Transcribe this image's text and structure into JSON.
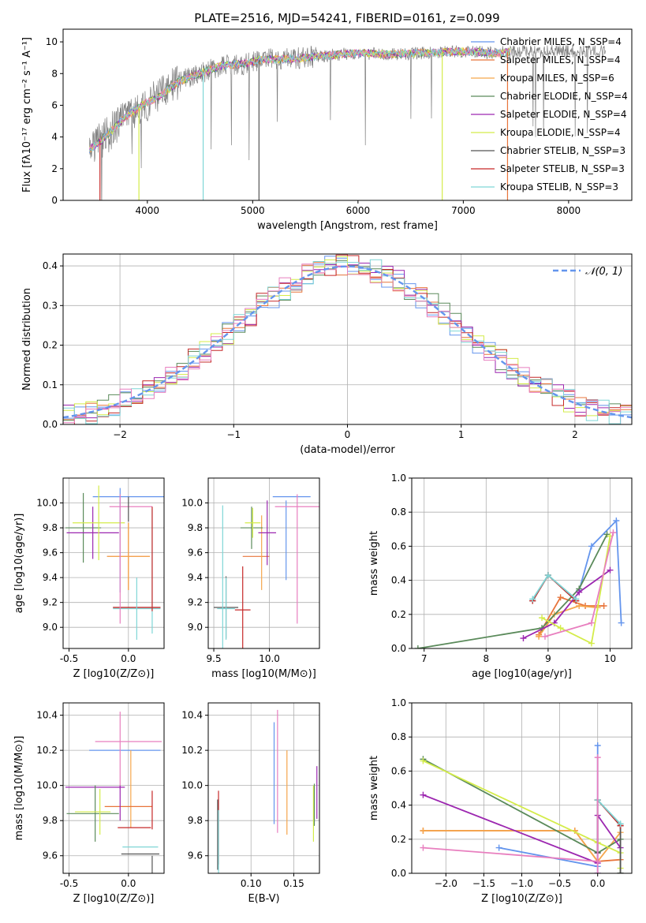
{
  "figure_title": "PLATE=2516, MJD=54241, FIBERID=0161, z=0.099",
  "colors": {
    "Chabrier MILES": "#6495ed",
    "Salpeter MILES": "#e8743b",
    "Kroupa MILES": "#f5a64c",
    "Chabrier ELODIE": "#5a8a5a",
    "Salpeter ELODIE": "#9c27b0",
    "Kroupa ELODIE": "#d4ec4a",
    "Chabrier STELIB": "#555555",
    "Salpeter STELIB": "#c62828",
    "Kroupa STELIB": "#7fd6d6",
    "pink": "#e87fbf",
    "data": "#808080",
    "gaussian": "#6495ed",
    "grid": "#b0b0b0"
  },
  "chart_data": [
    {
      "id": "spectrum",
      "type": "line",
      "title": "PLATE=2516, MJD=54241, FIBERID=0161, z=0.099",
      "xlabel": "wavelength [Angstrom, rest frame]",
      "ylabel": "Flux [fλ10⁻¹⁷ erg cm⁻² s⁻¹ A⁻¹]",
      "xlim": [
        3200,
        8600
      ],
      "ylim": [
        0,
        10.8
      ],
      "xticks": [
        4000,
        5000,
        6000,
        7000,
        8000
      ],
      "yticks": [
        0,
        2,
        4,
        6,
        8,
        10
      ],
      "grid": false,
      "legend_position": "right",
      "legend": [
        "Chabrier MILES, N_SSP=4",
        "Salpeter MILES, N_SSP=4",
        "Kroupa MILES, N_SSP=6",
        "Chabrier ELODIE, N_SSP=4",
        "Salpeter ELODIE, N_SSP=4",
        "Kroupa ELODIE, N_SSP=4",
        "Chabrier STELIB, N_SSP=3",
        "Salpeter STELIB, N_SSP=3",
        "Kroupa STELIB, N_SSP=3"
      ],
      "continuum": {
        "x": [
          3450,
          3600,
          3800,
          3950,
          4100,
          4300,
          4500,
          4700,
          4900,
          5100,
          5300,
          5500,
          5800,
          6000,
          6300,
          6600,
          7000,
          7300,
          7500
        ],
        "y": [
          3.2,
          4.0,
          5.3,
          6.0,
          6.5,
          7.5,
          8.0,
          8.5,
          8.6,
          8.9,
          8.9,
          9.0,
          9.2,
          9.3,
          9.2,
          9.3,
          9.4,
          9.3,
          9.4
        ]
      },
      "data_x_range": [
        3450,
        8350
      ],
      "model_x_range": [
        3450,
        7450
      ]
    },
    {
      "id": "residual-hist",
      "type": "bar",
      "xlabel": "(data-model)/error",
      "ylabel": "Normed distribution",
      "xlim": [
        -2.5,
        2.5
      ],
      "ylim": [
        0,
        0.43
      ],
      "xticks": [
        -2,
        -1,
        0,
        1,
        2
      ],
      "yticks": [
        0.0,
        0.1,
        0.2,
        0.3,
        0.4
      ],
      "grid": true,
      "legend": [
        "𝒩(0, 1)"
      ],
      "legend_position": "top-right",
      "bin_width": 0.1
    },
    {
      "id": "age-vs-Z",
      "type": "scatter",
      "xlabel": "Z [log10(Z/Z⊙)]",
      "ylabel": "age  [log10(age/yr)]",
      "xlim": [
        -0.55,
        0.3
      ],
      "ylim": [
        8.83,
        10.2
      ],
      "xticks": [
        -0.5,
        0.0
      ],
      "yticks": [
        9.0,
        9.2,
        9.4,
        9.6,
        9.8,
        10.0
      ],
      "grid": true,
      "points": [
        {
          "c": "Chabrier MILES",
          "x": 0.0,
          "xerr": 0.3,
          "y": 10.05,
          "yerr": 0.0
        },
        {
          "c": "Salpeter MILES",
          "x": 0.0,
          "xerr": 0.18,
          "y": 9.57,
          "yerr": 0.27
        },
        {
          "c": "Kroupa MILES",
          "x": 0.0,
          "xerr": 0.18,
          "y": 9.57,
          "yerr": 0.27
        },
        {
          "c": "Chabrier ELODIE",
          "x": -0.38,
          "xerr": 0.15,
          "y": 9.8,
          "yerr": 0.28
        },
        {
          "c": "Salpeter ELODIE",
          "x": -0.3,
          "xerr": 0.22,
          "y": 9.76,
          "yerr": 0.21
        },
        {
          "c": "Kroupa ELODIE",
          "x": -0.25,
          "xerr": 0.22,
          "y": 9.84,
          "yerr": 0.3
        },
        {
          "c": "Chabrier STELIB",
          "x": 0.07,
          "xerr": 0.2,
          "y": 9.16,
          "yerr": 0.0
        },
        {
          "c": "Salpeter STELIB",
          "x": 0.07,
          "xerr": 0.2,
          "y": 9.16,
          "yerr": 0.0
        },
        {
          "c": "Kroupa STELIB",
          "x": 0.07,
          "xerr": 0.2,
          "y": 9.15,
          "yerr": 0.25
        },
        {
          "c": "pink",
          "x": 0.02,
          "xerr": 0.18,
          "y": 9.97,
          "yerr": 0.0
        },
        {
          "c": "Chabrier MILES",
          "x": -0.07,
          "xerr": 0.0,
          "y": 9.7,
          "yerr": 0.42
        },
        {
          "c": "pink",
          "x": -0.07,
          "xerr": 0.0,
          "y": 9.55,
          "yerr": 0.52
        },
        {
          "c": "Chabrier STELIB",
          "x": 0.0,
          "xerr": 0.0,
          "y": 9.95,
          "yerr": 0.1
        },
        {
          "c": "Kroupa STELIB",
          "x": 0.2,
          "xerr": 0.0,
          "y": 9.45,
          "yerr": 0.5
        },
        {
          "c": "Salpeter STELIB",
          "x": 0.2,
          "xerr": 0.0,
          "y": 9.55,
          "yerr": 0.42
        }
      ]
    },
    {
      "id": "age-vs-mass",
      "type": "scatter",
      "xlabel": "mass [log10(M/M⊙)]",
      "ylabel": "",
      "xlim": [
        9.45,
        10.45
      ],
      "ylim": [
        8.83,
        10.2
      ],
      "xticks": [
        9.5,
        10.0
      ],
      "yticks": [
        9.0,
        9.2,
        9.4,
        9.6,
        9.8,
        10.0
      ],
      "grid": true,
      "points": [
        {
          "c": "Chabrier MILES",
          "x": 10.2,
          "xerr": 0.17,
          "y": 10.05,
          "yerr": 0.0
        },
        {
          "c": "Chabrier MILES",
          "x": 10.15,
          "xerr": 0.0,
          "y": 9.7,
          "yerr": 0.32
        },
        {
          "c": "pink",
          "x": 10.25,
          "xerr": 0.2,
          "y": 9.97,
          "yerr": 0.0
        },
        {
          "c": "pink",
          "x": 10.25,
          "xerr": 0.0,
          "y": 9.55,
          "yerr": 0.52
        },
        {
          "c": "Salpeter MILES",
          "x": 9.88,
          "xerr": 0.12,
          "y": 9.57,
          "yerr": 0.0
        },
        {
          "c": "Kroupa MILES",
          "x": 9.93,
          "xerr": 0.0,
          "y": 9.6,
          "yerr": 0.3
        },
        {
          "c": "Chabrier ELODIE",
          "x": 9.84,
          "xerr": 0.1,
          "y": 9.8,
          "yerr": 0.17
        },
        {
          "c": "Salpeter ELODIE",
          "x": 9.98,
          "xerr": 0.08,
          "y": 9.76,
          "yerr": 0.26
        },
        {
          "c": "Kroupa ELODIE",
          "x": 9.85,
          "xerr": 0.07,
          "y": 9.84,
          "yerr": 0.12
        },
        {
          "c": "Chabrier STELIB",
          "x": 9.61,
          "xerr": 0.11,
          "y": 9.16,
          "yerr": 0.25
        },
        {
          "c": "Salpeter STELIB",
          "x": 9.76,
          "xerr": 0.07,
          "y": 9.14,
          "yerr": 0.35
        },
        {
          "c": "Kroupa STELIB",
          "x": 9.61,
          "xerr": 0.08,
          "y": 9.15,
          "yerr": 0.25
        },
        {
          "c": "Kroupa STELIB",
          "x": 9.58,
          "xerr": 0.0,
          "y": 9.4,
          "yerr": 0.58
        }
      ]
    },
    {
      "id": "weight-vs-age",
      "type": "line",
      "xlabel": "age  [log10(age/yr)]",
      "ylabel": "mass weight",
      "xlim": [
        6.8,
        10.35
      ],
      "ylim": [
        0,
        1.0
      ],
      "xticks": [
        7,
        8,
        9,
        10
      ],
      "yticks": [
        0.0,
        0.2,
        0.4,
        0.6,
        0.8,
        1.0
      ],
      "grid": true,
      "series": [
        {
          "c": "Chabrier MILES",
          "x": [
            9.5,
            9.7,
            10.1,
            10.18
          ],
          "y": [
            0.34,
            0.6,
            0.75,
            0.15
          ]
        },
        {
          "c": "Salpeter MILES",
          "x": [
            8.85,
            9.2,
            9.6,
            9.9
          ],
          "y": [
            0.08,
            0.3,
            0.25,
            0.25
          ]
        },
        {
          "c": "Kroupa MILES",
          "x": [
            8.85,
            9.1,
            9.5,
            9.8
          ],
          "y": [
            0.07,
            0.2,
            0.25,
            0.24
          ]
        },
        {
          "c": "Chabrier ELODIE",
          "x": [
            6.9,
            8.9,
            9.5,
            9.95
          ],
          "y": [
            0.0,
            0.12,
            0.35,
            0.67
          ]
        },
        {
          "c": "Salpeter ELODIE",
          "x": [
            8.6,
            9.1,
            9.5,
            10.0
          ],
          "y": [
            0.06,
            0.15,
            0.33,
            0.46
          ]
        },
        {
          "c": "Kroupa ELODIE",
          "x": [
            8.9,
            9.2,
            9.7,
            10.0
          ],
          "y": [
            0.18,
            0.12,
            0.03,
            0.66
          ]
        },
        {
          "c": "Chabrier STELIB",
          "x": [
            8.75,
            9.0,
            9.45
          ],
          "y": [
            0.28,
            0.43,
            0.28
          ]
        },
        {
          "c": "Salpeter STELIB",
          "x": [
            8.75,
            9.0,
            9.45
          ],
          "y": [
            0.28,
            0.43,
            0.28
          ]
        },
        {
          "c": "Kroupa STELIB",
          "x": [
            8.75,
            9.0,
            9.45
          ],
          "y": [
            0.29,
            0.43,
            0.29
          ]
        },
        {
          "c": "pink",
          "x": [
            8.95,
            9.7,
            10.05
          ],
          "y": [
            0.07,
            0.15,
            0.68
          ]
        }
      ]
    },
    {
      "id": "mass-vs-Z",
      "type": "scatter",
      "xlabel": "Z [log10(Z/Z⊙)]",
      "ylabel": "mass [log10(M/M⊙)]",
      "xlim": [
        -0.55,
        0.3
      ],
      "ylim": [
        9.5,
        10.47
      ],
      "xticks": [
        -0.5,
        0.0
      ],
      "yticks": [
        9.6,
        9.8,
        10.0,
        10.2,
        10.4
      ],
      "grid": true,
      "points": [
        {
          "c": "Chabrier MILES",
          "x": -0.03,
          "xerr": 0.3,
          "y": 10.2,
          "yerr": 0.0
        },
        {
          "c": "pink",
          "x": 0.0,
          "xerr": 0.28,
          "y": 10.25,
          "yerr": 0.0
        },
        {
          "c": "pink",
          "x": -0.07,
          "xerr": 0.0,
          "y": 10.2,
          "yerr": 0.22
        },
        {
          "c": "Kroupa MILES",
          "x": 0.02,
          "xerr": 0.0,
          "y": 9.98,
          "yerr": 0.22
        },
        {
          "c": "Salpeter MILES",
          "x": 0.0,
          "xerr": 0.2,
          "y": 9.88,
          "yerr": 0.0
        },
        {
          "c": "Salpeter ELODIE",
          "x": -0.28,
          "xerr": 0.25,
          "y": 9.99,
          "yerr": 0.0
        },
        {
          "c": "Salpeter ELODIE",
          "x": -0.07,
          "xerr": 0.0,
          "y": 9.9,
          "yerr": 0.1
        },
        {
          "c": "Chabrier ELODIE",
          "x": -0.3,
          "xerr": 0.22,
          "y": 9.84,
          "yerr": 0.0
        },
        {
          "c": "Chabrier ELODIE",
          "x": -0.28,
          "xerr": 0.0,
          "y": 9.84,
          "yerr": 0.16
        },
        {
          "c": "Kroupa ELODIE",
          "x": -0.3,
          "xerr": 0.15,
          "y": 9.85,
          "yerr": 0.0
        },
        {
          "c": "Kroupa ELODIE",
          "x": -0.24,
          "xerr": 0.0,
          "y": 9.85,
          "yerr": 0.13
        },
        {
          "c": "Salpeter STELIB",
          "x": 0.05,
          "xerr": 0.14,
          "y": 9.76,
          "yerr": 0.0
        },
        {
          "c": "Salpeter STELIB",
          "x": 0.2,
          "xerr": 0.0,
          "y": 9.86,
          "yerr": 0.11
        },
        {
          "c": "Kroupa STELIB",
          "x": 0.1,
          "xerr": 0.15,
          "y": 9.65,
          "yerr": 0.0
        },
        {
          "c": "Chabrier STELIB",
          "x": 0.1,
          "xerr": 0.16,
          "y": 9.61,
          "yerr": 0.0
        },
        {
          "c": "Chabrier STELIB",
          "x": 0.2,
          "xerr": 0.0,
          "y": 9.55,
          "yerr": 0.05
        }
      ]
    },
    {
      "id": "mass-vs-EBV",
      "type": "scatter",
      "xlabel": "E(B-V)",
      "ylabel": "",
      "xlim": [
        0.05,
        0.18
      ],
      "ylim": [
        9.5,
        10.47
      ],
      "xticks": [
        0.1,
        0.15
      ],
      "yticks": [
        9.6,
        9.8,
        10.0,
        10.2,
        10.4
      ],
      "grid": true,
      "points": [
        {
          "c": "Chabrier MILES",
          "x": 0.127,
          "xerr": 0.0,
          "y": 10.07,
          "yerr": 0.29
        },
        {
          "c": "pink",
          "x": 0.131,
          "xerr": 0.0,
          "y": 10.08,
          "yerr": 0.35
        },
        {
          "c": "Kroupa MILES",
          "x": 0.142,
          "xerr": 0.0,
          "y": 9.96,
          "yerr": 0.24
        },
        {
          "c": "Salpeter ELODIE",
          "x": 0.177,
          "xerr": 0.0,
          "y": 9.96,
          "yerr": 0.15
        },
        {
          "c": "Kroupa ELODIE",
          "x": 0.173,
          "xerr": 0.0,
          "y": 9.84,
          "yerr": 0.16
        },
        {
          "c": "Chabrier ELODIE",
          "x": 0.174,
          "xerr": 0.0,
          "y": 9.89,
          "yerr": 0.12
        },
        {
          "c": "Salpeter STELIB",
          "x": 0.062,
          "xerr": 0.0,
          "y": 9.76,
          "yerr": 0.21
        },
        {
          "c": "Chabrier STELIB",
          "x": 0.061,
          "xerr": 0.0,
          "y": 9.72,
          "yerr": 0.2
        },
        {
          "c": "Kroupa STELIB",
          "x": 0.062,
          "xerr": 0.0,
          "y": 9.68,
          "yerr": 0.18
        }
      ]
    },
    {
      "id": "weight-vs-Z",
      "type": "line",
      "xlabel": "Z [log10(Z/Z⊙)]",
      "ylabel": "mass weight",
      "xlim": [
        -2.45,
        0.45
      ],
      "ylim": [
        0,
        1.0
      ],
      "xticks": [
        -2.0,
        -1.5,
        -1.0,
        -0.5,
        0.0
      ],
      "yticks": [
        0.0,
        0.2,
        0.4,
        0.6,
        0.8,
        1.0
      ],
      "grid": true,
      "series": [
        {
          "c": "Chabrier MILES",
          "x": [
            -1.3,
            0.0,
            0.0,
            0.0
          ],
          "y": [
            0.15,
            0.04,
            0.75,
            0.0
          ]
        },
        {
          "c": "Salpeter MILES",
          "x": [
            -2.3,
            -0.3,
            0.0,
            0.3
          ],
          "y": [
            0.25,
            0.25,
            0.07,
            0.08
          ]
        },
        {
          "c": "Kroupa MILES",
          "x": [
            -2.3,
            -0.3,
            0.0,
            0.3
          ],
          "y": [
            0.25,
            0.25,
            0.07,
            0.24
          ]
        },
        {
          "c": "Chabrier ELODIE",
          "x": [
            -2.3,
            0.0,
            0.3,
            0.3
          ],
          "y": [
            0.67,
            0.12,
            0.2,
            0.0
          ]
        },
        {
          "c": "Salpeter ELODIE",
          "x": [
            -2.3,
            0.0,
            0.0,
            0.3
          ],
          "y": [
            0.46,
            0.06,
            0.34,
            0.15
          ]
        },
        {
          "c": "Kroupa ELODIE",
          "x": [
            -2.3,
            0.0,
            0.3,
            0.3
          ],
          "y": [
            0.66,
            0.18,
            0.12,
            0.03
          ]
        },
        {
          "c": "Chabrier STELIB",
          "x": [
            0.0,
            0.0,
            0.3,
            0.3
          ],
          "y": [
            0.12,
            0.43,
            0.28,
            0.0
          ]
        },
        {
          "c": "Salpeter STELIB",
          "x": [
            0.0,
            0.3,
            0.3
          ],
          "y": [
            0.43,
            0.28,
            0.28
          ]
        },
        {
          "c": "Kroupa STELIB",
          "x": [
            0.0,
            0.3,
            0.3
          ],
          "y": [
            0.43,
            0.29,
            0.29
          ]
        },
        {
          "c": "pink",
          "x": [
            -2.3,
            0.0,
            0.0,
            0.0
          ],
          "y": [
            0.15,
            0.07,
            0.68,
            0.0
          ]
        }
      ]
    }
  ]
}
